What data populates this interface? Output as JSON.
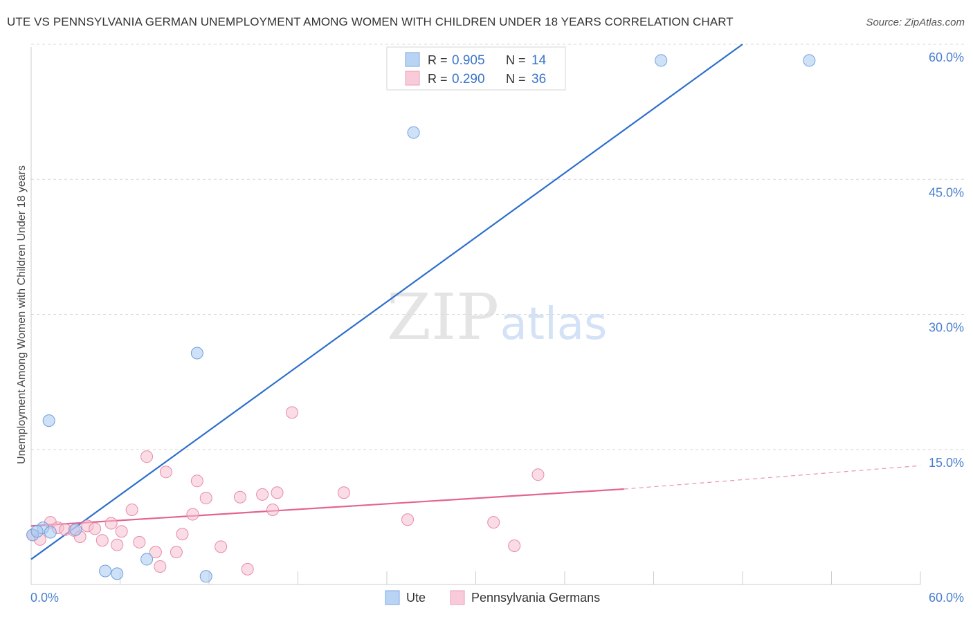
{
  "title": "UTE VS PENNSYLVANIA GERMAN UNEMPLOYMENT AMONG WOMEN WITH CHILDREN UNDER 18 YEARS CORRELATION CHART",
  "source": "Source: ZipAtlas.com",
  "watermark": {
    "zip": "ZIP",
    "atlas": "atlas"
  },
  "colors": {
    "ute_fill": "#a8c8f0",
    "ute_stroke": "#6f9fdc",
    "ute_line": "#2d6fcc",
    "pa_fill": "#f6bfd0",
    "pa_stroke": "#e88aa8",
    "pa_line": "#e2648f",
    "axis_text": "#4a7fcf",
    "grid": "#d9d9d9"
  },
  "legend": {
    "rows": [
      {
        "r_label": "R =",
        "r_value": "0.905",
        "n_label": "N =",
        "n_value": "14"
      },
      {
        "r_label": "R =",
        "r_value": "0.290",
        "n_label": "N =",
        "n_value": "36"
      }
    ]
  },
  "bottom_legend": {
    "ute": "Ute",
    "pa": "Pennsylvania Germans"
  },
  "chart_data": {
    "type": "scatter",
    "xlabel": "",
    "ylabel": "Unemployment Among Women with Children Under 18 years",
    "xlim": [
      0,
      60
    ],
    "ylim": [
      0,
      60
    ],
    "x_tick_labels": [
      "0.0%",
      "60.0%"
    ],
    "y_ticks": [
      15,
      30,
      45,
      60
    ],
    "y_tick_labels": [
      "15.0%",
      "30.0%",
      "45.0%",
      "60.0%"
    ],
    "series": [
      {
        "name": "Ute",
        "points": [
          [
            0.1,
            5.5
          ],
          [
            0.8,
            6.3
          ],
          [
            1.2,
            18.2
          ],
          [
            1.3,
            5.8
          ],
          [
            3.0,
            6.1
          ],
          [
            5.0,
            1.5
          ],
          [
            5.8,
            1.2
          ],
          [
            7.8,
            2.8
          ],
          [
            11.2,
            25.7
          ],
          [
            11.8,
            0.9
          ],
          [
            25.8,
            50.2
          ],
          [
            42.5,
            58.2
          ],
          [
            52.5,
            58.2
          ],
          [
            0.4,
            5.9
          ]
        ],
        "trend": {
          "x": [
            0,
            48
          ],
          "y": [
            2.8,
            60.0
          ]
        }
      },
      {
        "name": "Pennsylvania Germans",
        "points": [
          [
            0.1,
            5.5
          ],
          [
            0.6,
            5.0
          ],
          [
            1.3,
            6.9
          ],
          [
            1.8,
            6.3
          ],
          [
            2.3,
            6.1
          ],
          [
            2.9,
            6.0
          ],
          [
            3.3,
            5.3
          ],
          [
            3.8,
            6.5
          ],
          [
            4.3,
            6.2
          ],
          [
            4.8,
            4.9
          ],
          [
            5.4,
            6.8
          ],
          [
            5.8,
            4.4
          ],
          [
            6.1,
            5.9
          ],
          [
            6.8,
            8.3
          ],
          [
            7.3,
            4.7
          ],
          [
            7.8,
            14.2
          ],
          [
            8.4,
            3.6
          ],
          [
            8.7,
            2.0
          ],
          [
            9.1,
            12.5
          ],
          [
            9.8,
            3.6
          ],
          [
            10.2,
            5.6
          ],
          [
            10.9,
            7.8
          ],
          [
            11.2,
            11.5
          ],
          [
            11.8,
            9.6
          ],
          [
            12.8,
            4.2
          ],
          [
            14.1,
            9.7
          ],
          [
            14.6,
            1.7
          ],
          [
            15.6,
            10.0
          ],
          [
            16.3,
            8.3
          ],
          [
            16.6,
            10.2
          ],
          [
            17.6,
            19.1
          ],
          [
            21.1,
            10.2
          ],
          [
            25.4,
            7.2
          ],
          [
            31.2,
            6.9
          ],
          [
            32.6,
            4.3
          ],
          [
            34.2,
            12.2
          ]
        ],
        "trend": {
          "x": [
            0,
            40
          ],
          "y": [
            6.5,
            10.6
          ]
        },
        "trend_extended": {
          "x": [
            40,
            60
          ],
          "y": [
            10.6,
            13.2
          ]
        }
      }
    ]
  }
}
